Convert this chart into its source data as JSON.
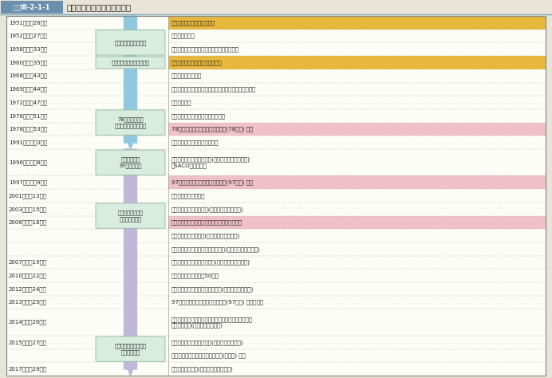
{
  "title_label": "図表Ⅲ-2-1-1",
  "title_text": "日米同盟にかかわる主な経緯",
  "bg_color": "#e8e4d8",
  "table_bg": "#fdfdf8",
  "header_bg": "#6a8faf",
  "orange_bg": "#e8b83c",
  "pink_bg": "#f0c0c8",
  "box_bg": "#d8ede0",
  "box_ec": "#90b898",
  "arrow1_color": "#90c8e0",
  "arrow2_color": "#c0b8d8",
  "rows": [
    {
      "year": "1951（昭和26）年",
      "event": "旧「日米安全保障条約」承認",
      "bg": "orange"
    },
    {
      "year": "1952（昭和27）年",
      "event": "「同条約」発効",
      "bg": "white",
      "box": "旧日米安保条約の時代"
    },
    {
      "year": "1958（昭和33）年",
      "event": "藤山・ダレス会談（日米安保条約改定同意）",
      "bg": "white"
    },
    {
      "year": "1960（昭和35）年",
      "event": "「日米安全保障条約」承認・発効",
      "bg": "orange",
      "box": "安保改定と新日米安保条約"
    },
    {
      "year": "1968（昭和43）年",
      "event": "（小笠原諸島復帰）",
      "bg": "white"
    },
    {
      "year": "1969（昭和44）年",
      "event": "佐藤・ニクソン会談（安保条約継続、沖縄施政権返還）",
      "bg": "white"
    },
    {
      "year": "1972（昭和47）年",
      "event": "（沖縄復帰）",
      "bg": "white"
    },
    {
      "year": "1976（昭和51）年",
      "event": "（日米防衛協力小委員会設置合意）",
      "bg": "white",
      "box": "78指针の策定と\n拡大する日米防衛協力"
    },
    {
      "year": "1978（昭和53）年",
      "event": "78「日米防衛協力のための指针」(78指针) 策定",
      "bg": "pink"
    },
    {
      "year": "1991（平成　3）年",
      "event": "（旧ソ連の崩厉、冷戦の終結）",
      "bg": "white"
    },
    {
      "year": "1996（平成　8）年",
      "event": "「日米安全保障共同宣言」(橋本・クリントン会談)\n「SACO最終報告」",
      "bg": "white",
      "box": "冷戦の終結と\n97指针の策定"
    },
    {
      "year": "1997（平成　9）年",
      "event": "97「日米防衛協力のための指针」(97指针) 策定",
      "bg": "pink"
    },
    {
      "year": "2001（平成13）年",
      "event": "（米国同時多発テロ）",
      "bg": "white"
    },
    {
      "year": "2003（平成15）年",
      "event": "「世界の中の日米同盟」(小泉・ブッシュ会談)",
      "bg": "white",
      "box": "米国同時多発テロ\n以降の日米関係"
    },
    {
      "year": "2006（平成18）年",
      "event": "「再編の実施のための日米ロードマップ」策定",
      "bg": "pink"
    },
    {
      "year": "",
      "event": "「新世紀の日米同盟」(小泉・ブッシュ会談)",
      "bg": "white"
    },
    {
      "year": "",
      "event": "「世界とアジアのための日米同盟」(安倍・ブッシュ会談)",
      "bg": "white"
    },
    {
      "year": "2007（平成19）年",
      "event": "「かけがえのない日米同盟」(安倍・ブッシュ会談)",
      "bg": "white"
    },
    {
      "year": "2010（平成22）年",
      "event": "日米安全保障条約締結50周年",
      "bg": "white"
    },
    {
      "year": "2012（平成24）年",
      "event": "「未来に向けた共通のビジョン」(野田・オバマ会談)",
      "bg": "white"
    },
    {
      "year": "2013（平成25）年",
      "event": "97「日米防衛協力のための指针」(97指针) 見直し合意",
      "bg": "white"
    },
    {
      "year": "2014（平成26）年",
      "event": "「アジア太平洋及びこれを超えた地域の未来を形作る\n日本と米国」(安倍・オバマ会談)",
      "bg": "white"
    },
    {
      "year": "2015（平成27）年",
      "event": "「日米共同ビジョン声明」(安倍・オバマ会談)",
      "bg": "white",
      "box": "新たな安全保障環境と\n新指针の策定"
    },
    {
      "year": "",
      "event": "新「日米防衛協力のための指针」(新指针) 策定",
      "bg": "white"
    },
    {
      "year": "2017（平成29）年",
      "event": "「日米共同声明」(安倍・トランプ会談)",
      "bg": "white"
    }
  ],
  "boxes": [
    {
      "text": "旧日米安保条約の時代",
      "rs": 1,
      "re": 2
    },
    {
      "text": "安保改定と新日米安保条約",
      "rs": 3,
      "re": 3
    },
    {
      "text": "78指针の策定と\n拡大する日米防衛協力",
      "rs": 7,
      "re": 8
    },
    {
      "text": "冷戦の終結と\n97指针の策定",
      "rs": 10,
      "re": 10
    },
    {
      "text": "米国同時多発テロ\n以降の日米関係",
      "rs": 13,
      "re": 14
    },
    {
      "text": "新たな安全保障環境と\n新指针の策定",
      "rs": 22,
      "re": 23
    }
  ]
}
